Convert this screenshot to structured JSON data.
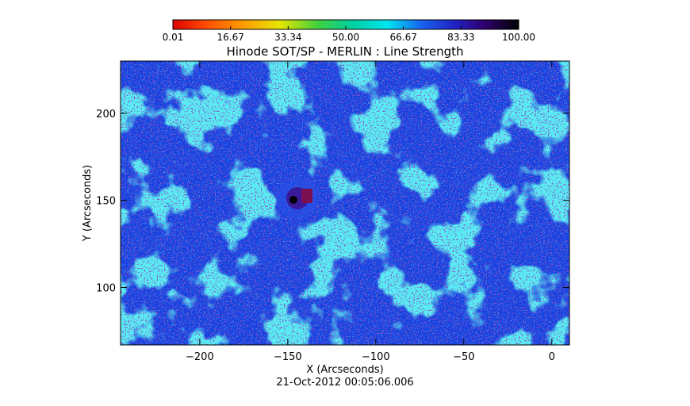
{
  "chart_data": {
    "type": "heatmap",
    "title": "Hinode SOT/SP - MERLIN : Line Strength",
    "xlabel": "X (Arcseconds)",
    "ylabel": "Y (Arcseconds)",
    "timestamp": "21-Oct-2012 00:05:06.006",
    "xlim": [
      -245,
      10
    ],
    "ylim": [
      67,
      230
    ],
    "x_ticks": [
      -200,
      -150,
      -100,
      -50,
      0
    ],
    "y_ticks": [
      100,
      150,
      200
    ],
    "x_tick_labels": [
      "−200",
      "−150",
      "−100",
      "−50",
      "0"
    ],
    "y_tick_labels": [
      "100",
      "150",
      "200"
    ],
    "colorbar": {
      "min": 0.01,
      "max": 100.0,
      "tick_labels": [
        "0.01",
        "16.67",
        "33.34",
        "50.00",
        "66.67",
        "83.33",
        "100.00"
      ],
      "colors": [
        "#e00000",
        "#ff8a00",
        "#f2e600",
        "#00c850",
        "#00e6f0",
        "#1030e0",
        "#2a0050",
        "#000000"
      ]
    },
    "map_colors": {
      "background": "#1840e0",
      "bright_network": "#18d6e6",
      "dark_speckle": "#3a1a9a",
      "deep_speckle": "#5a0a5a"
    },
    "feature": "dark spot near X≈−140, Y≈150"
  }
}
